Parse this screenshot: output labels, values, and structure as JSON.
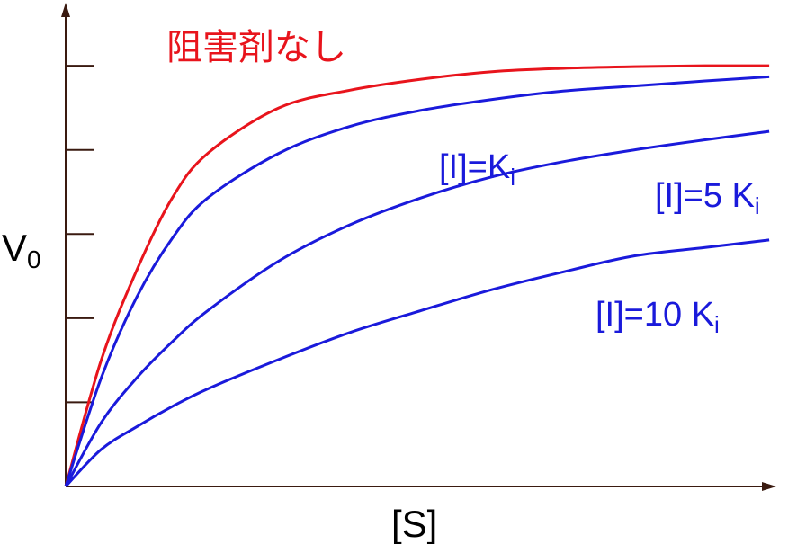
{
  "chart_data": {
    "type": "line",
    "x_label": "[S]",
    "y_label": {
      "text": "V",
      "sub": "0"
    },
    "x": [
      0,
      5,
      10,
      15,
      20,
      30,
      40,
      50,
      60,
      70,
      80,
      90,
      99
    ],
    "xlim": [
      0,
      100
    ],
    "ylim": [
      0,
      5.75
    ],
    "yticks": [
      1,
      2,
      3,
      4,
      5
    ],
    "axis_color": "#3a1a10",
    "series": [
      {
        "name": "阻害剤なし",
        "color": "#e8141c",
        "values": [
          0,
          1.5,
          2.57,
          3.43,
          3.96,
          4.5,
          4.71,
          4.84,
          4.93,
          4.97,
          4.99,
          5,
          5
        ]
      },
      {
        "name": "[I]=K",
        "sub": "i",
        "color": "#1a1adb",
        "values": [
          0,
          1.29,
          2.25,
          2.95,
          3.43,
          3.96,
          4.28,
          4.47,
          4.6,
          4.7,
          4.76,
          4.82,
          4.87
        ]
      },
      {
        "name": "[I]=5 K",
        "sub": "i",
        "color": "#1a1adb",
        "values": [
          0,
          0.76,
          1.29,
          1.72,
          2.09,
          2.68,
          3.11,
          3.43,
          3.68,
          3.86,
          4.0,
          4.12,
          4.22
        ]
      },
      {
        "name": "[I]=10 K",
        "sub": "i",
        "color": "#1a1adb",
        "values": [
          0,
          0.44,
          0.71,
          0.95,
          1.16,
          1.51,
          1.83,
          2.09,
          2.34,
          2.55,
          2.74,
          2.84,
          2.93
        ]
      }
    ]
  }
}
